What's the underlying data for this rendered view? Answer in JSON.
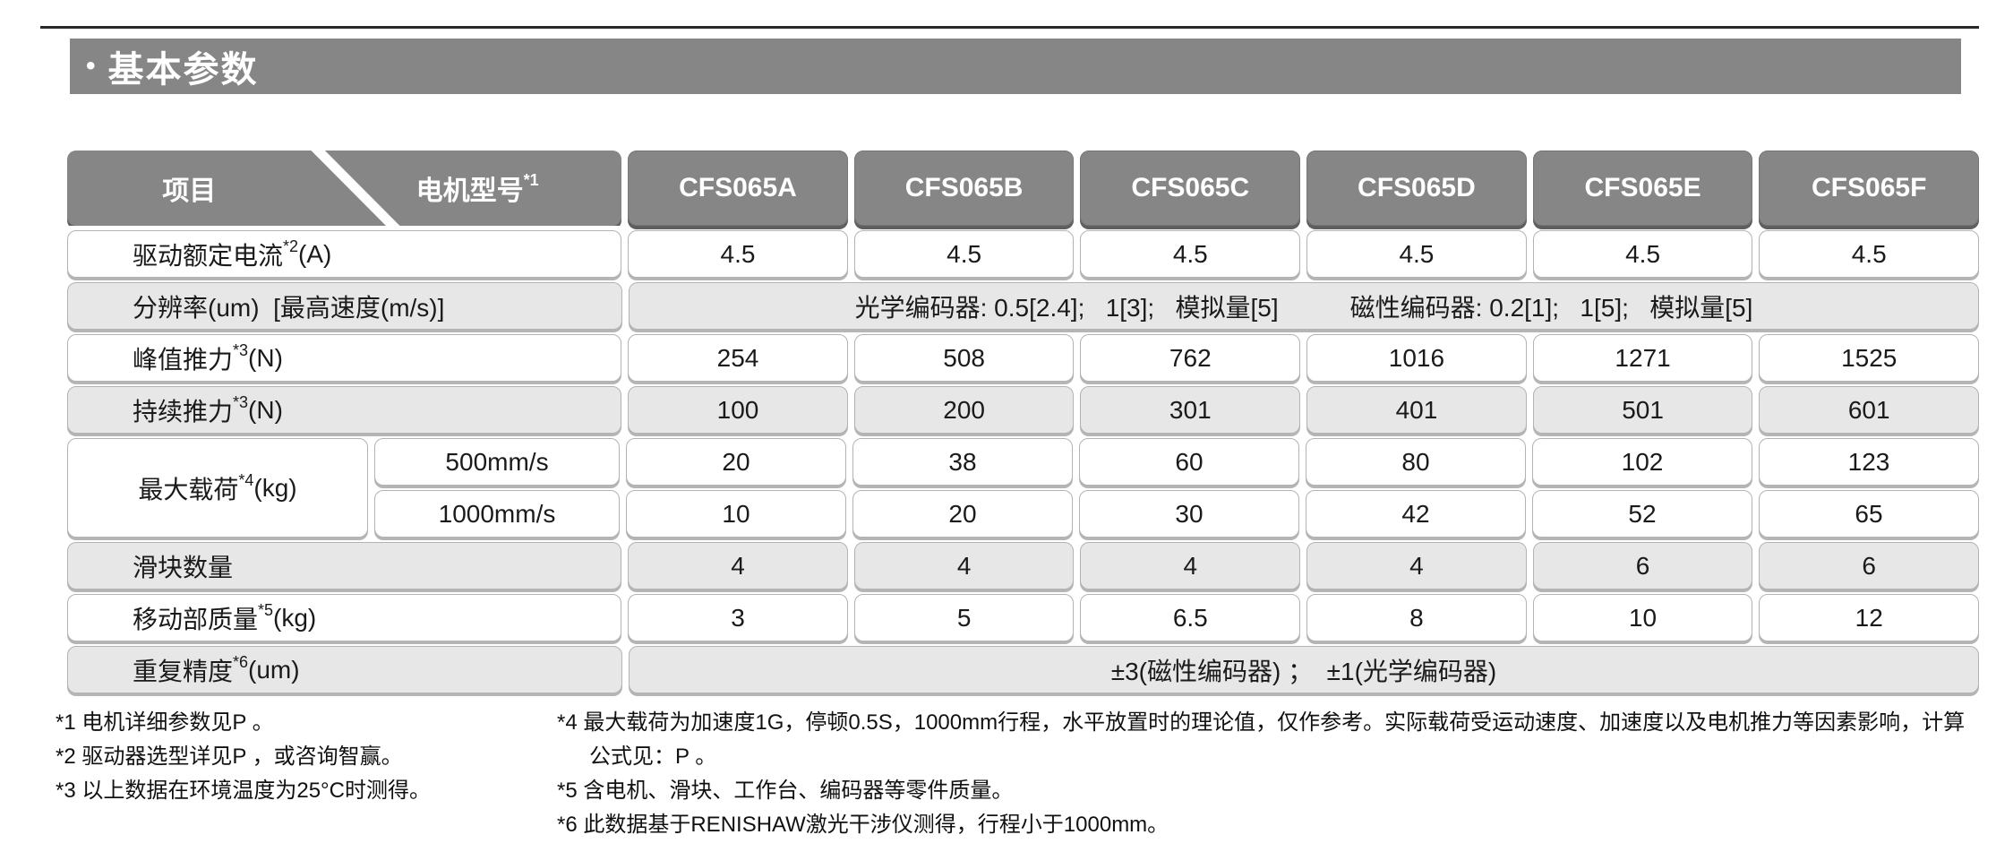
{
  "colors": {
    "header_gray": "#868686",
    "row_gray": "#e7e7e7",
    "row_white": "#ffffff",
    "text": "#1a1a1a"
  },
  "banner": {
    "bullet": "•",
    "title": "基本参数"
  },
  "table": {
    "corner": {
      "left": "项目",
      "right": "电机型号",
      "right_sup": "*1"
    },
    "columns": [
      "CFS065A",
      "CFS065B",
      "CFS065C",
      "CFS065D",
      "CFS065E",
      "CFS065F"
    ],
    "rows": {
      "current": {
        "label": "驱动额定电流",
        "sup": "*2",
        "unit": "(A)",
        "values": [
          "4.5",
          "4.5",
          "4.5",
          "4.5",
          "4.5",
          "4.5"
        ]
      },
      "resolution": {
        "label": "分辨率(um)  [最高速度(m/s)]",
        "optical": "光学编码器: 0.5[2.4];   1[3];   模拟量[5]",
        "magnetic": "磁性编码器: 0.2[1];   1[5];   模拟量[5]"
      },
      "peak_force": {
        "label": "峰值推力",
        "sup": "*3",
        "unit": "(N)",
        "values": [
          "254",
          "508",
          "762",
          "1016",
          "1271",
          "1525"
        ]
      },
      "cont_force": {
        "label": "持续推力",
        "sup": "*3",
        "unit": "(N)",
        "values": [
          "100",
          "200",
          "301",
          "401",
          "501",
          "601"
        ]
      },
      "max_load": {
        "label": "最大载荷",
        "sup": "*4",
        "unit": "(kg)",
        "sub": [
          {
            "speed": "500mm/s",
            "values": [
              "20",
              "38",
              "60",
              "80",
              "102",
              "123"
            ]
          },
          {
            "speed": "1000mm/s",
            "values": [
              "10",
              "20",
              "30",
              "42",
              "52",
              "65"
            ]
          }
        ]
      },
      "slider_count": {
        "label": "滑块数量",
        "values": [
          "4",
          "4",
          "4",
          "4",
          "6",
          "6"
        ]
      },
      "moving_mass": {
        "label": "移动部质量",
        "sup": "*5",
        "unit": "(kg)",
        "values": [
          "3",
          "5",
          "6.5",
          "8",
          "10",
          "12"
        ]
      },
      "repeatability": {
        "label": "重复精度",
        "sup": "*6",
        "unit": "(um)",
        "value": "±3(磁性编码器) ；  ±1(光学编码器)"
      }
    }
  },
  "footnotes": {
    "left": [
      "*1 电机详细参数见P 。",
      "*2 驱动器选型详见P ，或咨询智赢。",
      "*3 以上数据在环境温度为25°C时测得。"
    ],
    "right": [
      "*4 最大载荷为加速度1G，停顿0.5S，1000mm行程，水平放置时的理论值，仅作参考。实际载荷受运动速度、加速度以及电机推力等因素影响，计算",
      "公式见：P 。",
      "*5 含电机、滑块、工作台、编码器等零件质量。",
      "*6 此数据基于RENISHAW激光干涉仪测得，行程小于1000mm。"
    ]
  }
}
